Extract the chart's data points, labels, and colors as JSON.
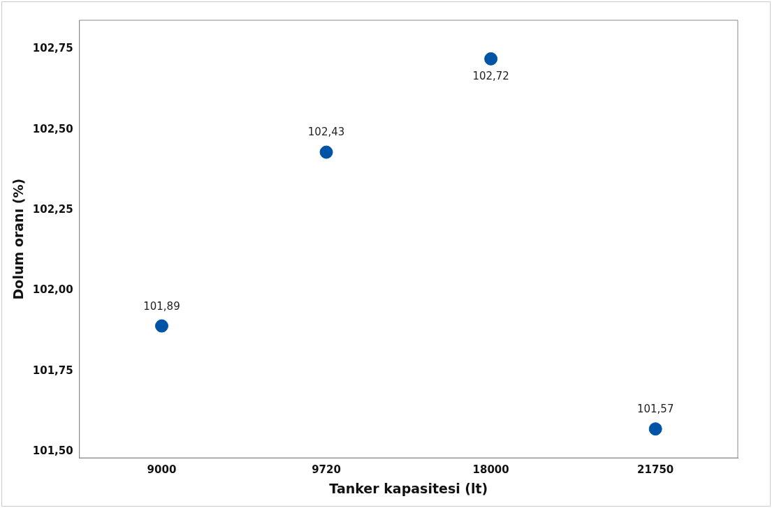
{
  "chart_data": {
    "type": "scatter",
    "xlabel": "Tanker kapasitesi (lt)",
    "ylabel": "Dolum oranı (%)",
    "categories": [
      "9000",
      "9720",
      "18000",
      "21750"
    ],
    "series": [
      {
        "color": "#0054a6",
        "values": [
          101.89,
          102.43,
          102.72,
          101.57
        ],
        "value_labels": [
          "101,89",
          "102,43",
          "102,72",
          "101,57"
        ]
      }
    ],
    "ylim": [
      101.48,
      102.84
    ],
    "yticks": [
      {
        "value": 101.5,
        "label": "101,50"
      },
      {
        "value": 101.75,
        "label": "101,75"
      },
      {
        "value": 102,
        "label": "102,00"
      },
      {
        "value": 102.25,
        "label": "102,25"
      },
      {
        "value": 102.5,
        "label": "102,50"
      },
      {
        "value": 102.75,
        "label": "102,75"
      }
    ],
    "grid": false,
    "legend": false,
    "marker": "circle"
  }
}
